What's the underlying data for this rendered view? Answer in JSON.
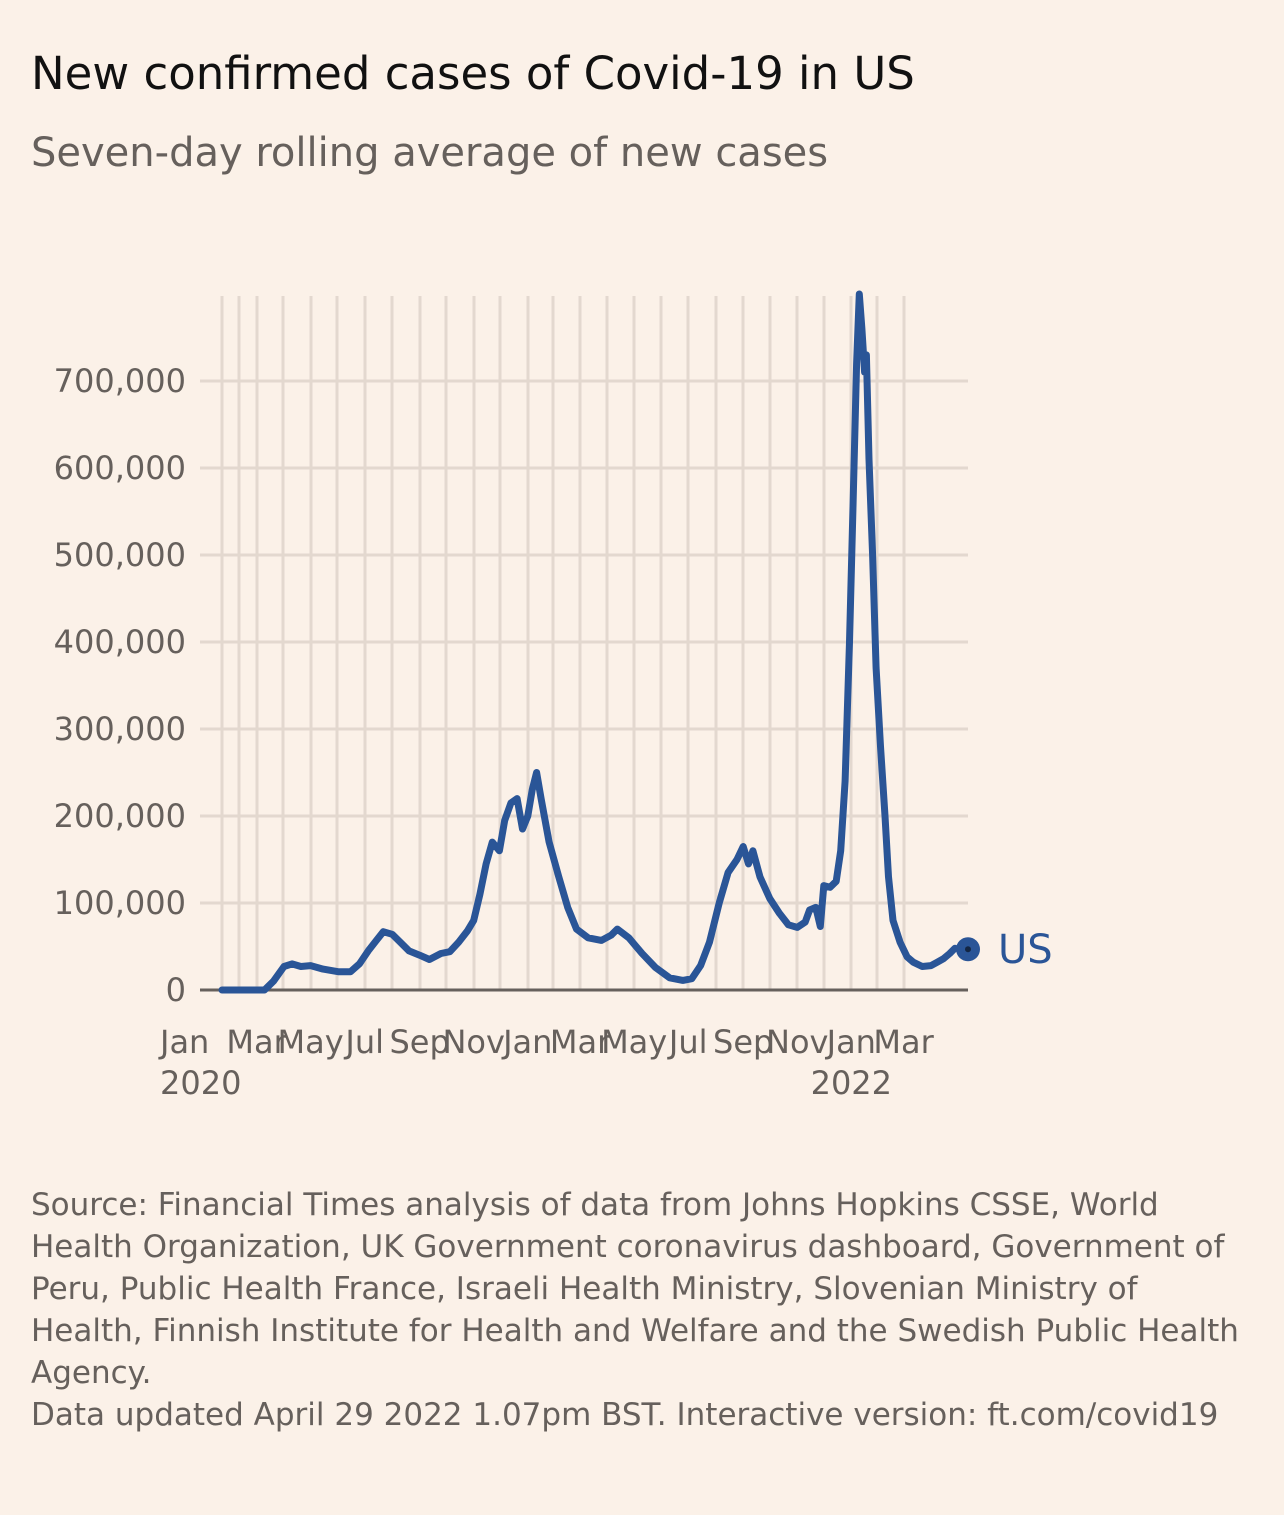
{
  "header": {
    "title": "New confirmed cases of Covid-19 in US",
    "subtitle": "Seven-day rolling average of new cases"
  },
  "footer": {
    "source": "Source: Financial Times analysis of data from Johns Hopkins CSSE, World Health Organization, UK Government coronavirus dashboard, Government of Peru, Public Health France, Israeli Health Ministry, Slovenian Ministry of Health, Finnish Institute for Health and Welfare and the Swedish Public Health Agency.",
    "updated": "Data updated April 29 2022 1.07pm BST. Interactive version: ft.com/covid19"
  },
  "colors": {
    "background": "#fbf1e8",
    "series": "#2a5597",
    "grid": "#e3d8cf",
    "axis": "#66605c"
  },
  "chart_data": {
    "type": "line",
    "title": "New confirmed cases of Covid-19 in US",
    "subtitle": "Seven-day rolling average of new cases",
    "xlabel": "",
    "ylabel": "",
    "xlim": [
      "2020-01-22",
      "2022-04-28"
    ],
    "ylim": [
      0,
      800000
    ],
    "grid": true,
    "y_ticks": [
      {
        "value": 0,
        "label": "0"
      },
      {
        "value": 100000,
        "label": "100,000"
      },
      {
        "value": 200000,
        "label": "200,000"
      },
      {
        "value": 300000,
        "label": "300,000"
      },
      {
        "value": 400000,
        "label": "400,000"
      },
      {
        "value": 500000,
        "label": "500,000"
      },
      {
        "value": 600000,
        "label": "600,000"
      },
      {
        "value": 700000,
        "label": "700,000"
      }
    ],
    "x_ticks": [
      {
        "date": "2020-01-22",
        "label": "Jan",
        "sublabel": "2020"
      },
      {
        "date": "2020-03-01",
        "label": "Mar"
      },
      {
        "date": "2020-05-01",
        "label": "May"
      },
      {
        "date": "2020-07-01",
        "label": "Jul"
      },
      {
        "date": "2020-09-01",
        "label": "Sep"
      },
      {
        "date": "2020-11-01",
        "label": "Nov"
      },
      {
        "date": "2021-01-01",
        "label": "Jan"
      },
      {
        "date": "2021-03-01",
        "label": "Mar"
      },
      {
        "date": "2021-05-01",
        "label": "May"
      },
      {
        "date": "2021-07-01",
        "label": "Jul"
      },
      {
        "date": "2021-09-01",
        "label": "Sep"
      },
      {
        "date": "2021-11-01",
        "label": "Nov"
      },
      {
        "date": "2022-01-01",
        "label": "Jan",
        "sublabel": "2022"
      },
      {
        "date": "2022-03-01",
        "label": "Mar"
      }
    ],
    "series": [
      {
        "name": "US",
        "label": "US",
        "end_marker": true,
        "points": [
          [
            "2020-01-22",
            0
          ],
          [
            "2020-03-10",
            0
          ],
          [
            "2020-03-20",
            10000
          ],
          [
            "2020-04-01",
            27000
          ],
          [
            "2020-04-10",
            30000
          ],
          [
            "2020-04-20",
            27000
          ],
          [
            "2020-05-01",
            28000
          ],
          [
            "2020-05-15",
            24000
          ],
          [
            "2020-06-01",
            21000
          ],
          [
            "2020-06-15",
            21000
          ],
          [
            "2020-06-25",
            30000
          ],
          [
            "2020-07-05",
            45000
          ],
          [
            "2020-07-15",
            58000
          ],
          [
            "2020-07-22",
            67000
          ],
          [
            "2020-08-01",
            64000
          ],
          [
            "2020-08-10",
            55000
          ],
          [
            "2020-08-20",
            45000
          ],
          [
            "2020-09-01",
            40000
          ],
          [
            "2020-09-12",
            35000
          ],
          [
            "2020-09-25",
            42000
          ],
          [
            "2020-10-05",
            44000
          ],
          [
            "2020-10-15",
            55000
          ],
          [
            "2020-10-25",
            68000
          ],
          [
            "2020-11-01",
            80000
          ],
          [
            "2020-11-08",
            110000
          ],
          [
            "2020-11-15",
            145000
          ],
          [
            "2020-11-22",
            170000
          ],
          [
            "2020-11-30",
            160000
          ],
          [
            "2020-12-06",
            195000
          ],
          [
            "2020-12-13",
            215000
          ],
          [
            "2020-12-20",
            220000
          ],
          [
            "2020-12-26",
            185000
          ],
          [
            "2021-01-01",
            200000
          ],
          [
            "2021-01-06",
            230000
          ],
          [
            "2021-01-11",
            250000
          ],
          [
            "2021-01-16",
            220000
          ],
          [
            "2021-01-25",
            170000
          ],
          [
            "2021-02-05",
            130000
          ],
          [
            "2021-02-15",
            95000
          ],
          [
            "2021-02-25",
            70000
          ],
          [
            "2021-03-10",
            60000
          ],
          [
            "2021-03-25",
            57000
          ],
          [
            "2021-04-05",
            63000
          ],
          [
            "2021-04-12",
            70000
          ],
          [
            "2021-04-25",
            60000
          ],
          [
            "2021-05-10",
            42000
          ],
          [
            "2021-05-25",
            26000
          ],
          [
            "2021-06-10",
            14000
          ],
          [
            "2021-06-25",
            11000
          ],
          [
            "2021-07-05",
            13000
          ],
          [
            "2021-07-15",
            28000
          ],
          [
            "2021-07-25",
            55000
          ],
          [
            "2021-08-05",
            100000
          ],
          [
            "2021-08-15",
            135000
          ],
          [
            "2021-08-25",
            150000
          ],
          [
            "2021-09-01",
            165000
          ],
          [
            "2021-09-07",
            145000
          ],
          [
            "2021-09-12",
            160000
          ],
          [
            "2021-09-20",
            130000
          ],
          [
            "2021-10-01",
            105000
          ],
          [
            "2021-10-12",
            88000
          ],
          [
            "2021-10-22",
            75000
          ],
          [
            "2021-11-01",
            72000
          ],
          [
            "2021-11-10",
            78000
          ],
          [
            "2021-11-15",
            92000
          ],
          [
            "2021-11-22",
            95000
          ],
          [
            "2021-11-27",
            73000
          ],
          [
            "2021-12-01",
            120000
          ],
          [
            "2021-12-08",
            118000
          ],
          [
            "2021-12-15",
            125000
          ],
          [
            "2021-12-20",
            160000
          ],
          [
            "2021-12-25",
            240000
          ],
          [
            "2021-12-30",
            400000
          ],
          [
            "2022-01-03",
            560000
          ],
          [
            "2022-01-07",
            720000
          ],
          [
            "2022-01-10",
            805000
          ],
          [
            "2022-01-13",
            760000
          ],
          [
            "2022-01-16",
            710000
          ],
          [
            "2022-01-18",
            730000
          ],
          [
            "2022-01-21",
            610000
          ],
          [
            "2022-01-25",
            500000
          ],
          [
            "2022-01-29",
            370000
          ],
          [
            "2022-02-03",
            280000
          ],
          [
            "2022-02-08",
            200000
          ],
          [
            "2022-02-12",
            130000
          ],
          [
            "2022-02-17",
            80000
          ],
          [
            "2022-02-25",
            55000
          ],
          [
            "2022-03-05",
            38000
          ],
          [
            "2022-03-12",
            32000
          ],
          [
            "2022-03-22",
            27000
          ],
          [
            "2022-04-01",
            28000
          ],
          [
            "2022-04-08",
            32000
          ],
          [
            "2022-04-15",
            36000
          ],
          [
            "2022-04-22",
            42000
          ],
          [
            "2022-04-28",
            48000
          ]
        ]
      }
    ]
  }
}
